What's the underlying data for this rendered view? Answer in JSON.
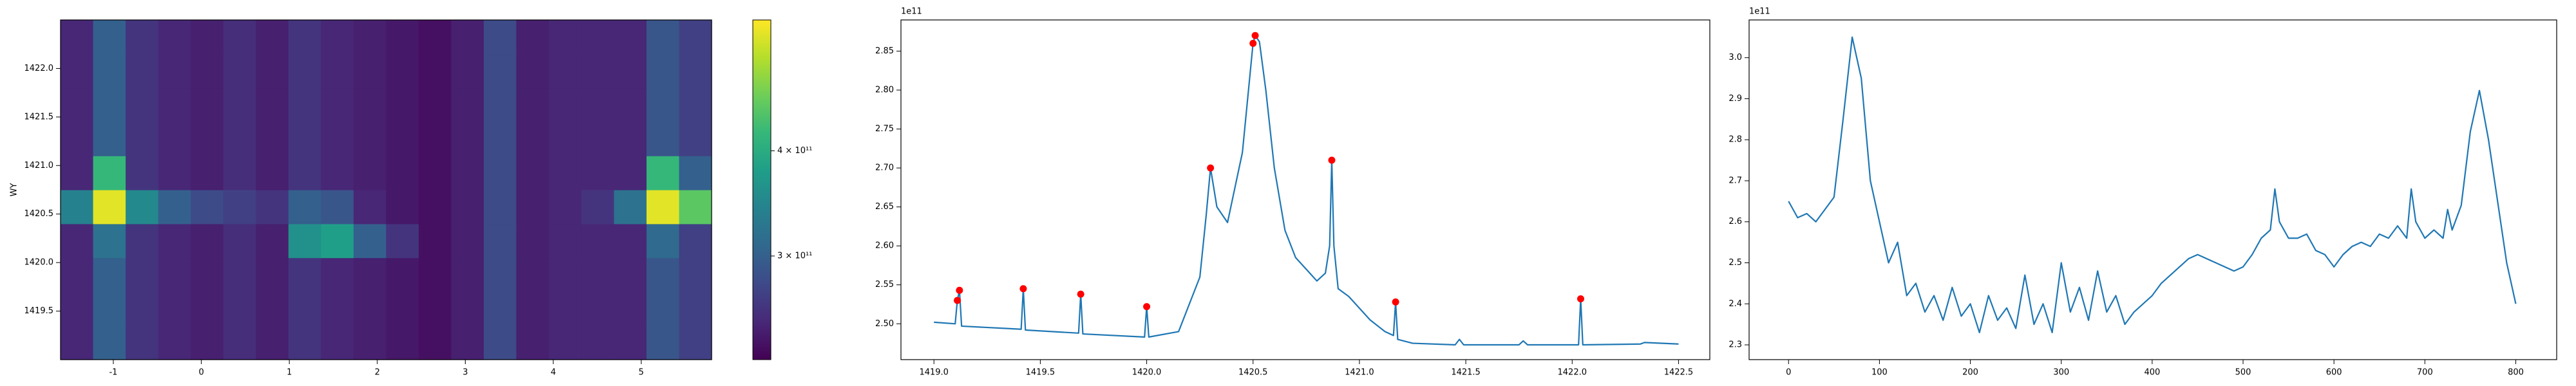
{
  "chart_data": [
    {
      "type": "heatmap",
      "ylabel": "WY",
      "origin": "lower",
      "xlim": [
        -1.6,
        5.8
      ],
      "ylim": [
        1419.0,
        1422.5
      ],
      "xticks": [
        -1,
        0,
        1,
        2,
        3,
        4,
        5
      ],
      "yticks": [
        1419.5,
        {
          "value": 1420,
          "label": "1420.0"
        },
        1420.5,
        {
          "value": 1421,
          "label": "1421.0"
        },
        1421.5,
        {
          "value": 1422,
          "label": "1422.0"
        }
      ],
      "colormap": [
        "#440154",
        "#482878",
        "#3e4989",
        "#31688e",
        "#26828e",
        "#1f9e89",
        "#35b779",
        "#6ece58",
        "#b5de2b",
        "#fde725"
      ],
      "zscale": "log",
      "colorbar": {
        "zlim": [
          226000000000.0,
          572000000000.0
        ],
        "ticks": [
          {
            "value": 300000000000.0,
            "label": "3 × 10¹¹"
          },
          {
            "value": 400000000000.0,
            "label": "4 × 10¹¹"
          }
        ]
      },
      "z": [
        [
          250000000000.0,
          300000000000.0,
          260000000000.0,
          250000000000.0,
          245000000000.0,
          255000000000.0,
          245000000000.0,
          260000000000.0,
          250000000000.0,
          245000000000.0,
          240000000000.0,
          235000000000.0,
          245000000000.0,
          280000000000.0,
          245000000000.0,
          250000000000.0,
          250000000000.0,
          250000000000.0,
          290000000000.0,
          270000000000.0
        ],
        [
          250000000000.0,
          300000000000.0,
          260000000000.0,
          250000000000.0,
          245000000000.0,
          255000000000.0,
          245000000000.0,
          260000000000.0,
          250000000000.0,
          245000000000.0,
          240000000000.0,
          235000000000.0,
          245000000000.0,
          280000000000.0,
          245000000000.0,
          250000000000.0,
          250000000000.0,
          250000000000.0,
          290000000000.0,
          270000000000.0
        ],
        [
          250000000000.0,
          300000000000.0,
          260000000000.0,
          250000000000.0,
          245000000000.0,
          255000000000.0,
          245000000000.0,
          260000000000.0,
          250000000000.0,
          245000000000.0,
          240000000000.0,
          235000000000.0,
          245000000000.0,
          280000000000.0,
          245000000000.0,
          250000000000.0,
          250000000000.0,
          250000000000.0,
          290000000000.0,
          270000000000.0
        ],
        [
          250000000000.0,
          320000000000.0,
          260000000000.0,
          250000000000.0,
          245000000000.0,
          255000000000.0,
          245000000000.0,
          360000000000.0,
          380000000000.0,
          300000000000.0,
          260000000000.0,
          235000000000.0,
          245000000000.0,
          280000000000.0,
          245000000000.0,
          250000000000.0,
          250000000000.0,
          250000000000.0,
          310000000000.0,
          270000000000.0
        ],
        [
          340000000000.0,
          550000000000.0,
          350000000000.0,
          300000000000.0,
          280000000000.0,
          270000000000.0,
          260000000000.0,
          300000000000.0,
          290000000000.0,
          250000000000.0,
          240000000000.0,
          235000000000.0,
          245000000000.0,
          280000000000.0,
          245000000000.0,
          250000000000.0,
          260000000000.0,
          320000000000.0,
          550000000000.0,
          450000000000.0
        ],
        [
          250000000000.0,
          420000000000.0,
          260000000000.0,
          250000000000.0,
          245000000000.0,
          255000000000.0,
          245000000000.0,
          260000000000.0,
          250000000000.0,
          245000000000.0,
          240000000000.0,
          235000000000.0,
          245000000000.0,
          280000000000.0,
          245000000000.0,
          250000000000.0,
          250000000000.0,
          250000000000.0,
          420000000000.0,
          300000000000.0
        ],
        [
          250000000000.0,
          300000000000.0,
          260000000000.0,
          250000000000.0,
          245000000000.0,
          255000000000.0,
          245000000000.0,
          260000000000.0,
          250000000000.0,
          245000000000.0,
          240000000000.0,
          235000000000.0,
          245000000000.0,
          280000000000.0,
          245000000000.0,
          250000000000.0,
          250000000000.0,
          250000000000.0,
          290000000000.0,
          270000000000.0
        ],
        [
          250000000000.0,
          300000000000.0,
          260000000000.0,
          250000000000.0,
          245000000000.0,
          255000000000.0,
          245000000000.0,
          260000000000.0,
          250000000000.0,
          245000000000.0,
          240000000000.0,
          235000000000.0,
          245000000000.0,
          280000000000.0,
          245000000000.0,
          250000000000.0,
          250000000000.0,
          250000000000.0,
          290000000000.0,
          270000000000.0
        ],
        [
          250000000000.0,
          300000000000.0,
          260000000000.0,
          250000000000.0,
          245000000000.0,
          255000000000.0,
          245000000000.0,
          260000000000.0,
          250000000000.0,
          245000000000.0,
          240000000000.0,
          235000000000.0,
          245000000000.0,
          280000000000.0,
          245000000000.0,
          250000000000.0,
          250000000000.0,
          250000000000.0,
          290000000000.0,
          270000000000.0
        ],
        [
          250000000000.0,
          300000000000.0,
          260000000000.0,
          250000000000.0,
          245000000000.0,
          255000000000.0,
          245000000000.0,
          260000000000.0,
          250000000000.0,
          245000000000.0,
          240000000000.0,
          235000000000.0,
          245000000000.0,
          280000000000.0,
          245000000000.0,
          250000000000.0,
          250000000000.0,
          250000000000.0,
          290000000000.0,
          270000000000.0
        ]
      ]
    },
    {
      "type": "line",
      "y_offset_label": "1e11",
      "xlim": [
        1418.845,
        1422.647
      ],
      "ylim": [
        2.454,
        2.89
      ],
      "xticks": [
        {
          "value": 1419,
          "label": "1419.0"
        },
        1419.5,
        {
          "value": 1420,
          "label": "1420.0"
        },
        1420.5,
        {
          "value": 1421,
          "label": "1421.0"
        },
        1421.5,
        {
          "value": 1422,
          "label": "1422.0"
        },
        1422.5
      ],
      "yticks": [
        {
          "value": 2.5,
          "label": "2.50"
        },
        2.55,
        {
          "value": 2.6,
          "label": "2.60"
        },
        2.65,
        {
          "value": 2.7,
          "label": "2.70"
        },
        2.75,
        {
          "value": 2.8,
          "label": "2.80"
        },
        2.85
      ],
      "series": [
        {
          "color": "#1f77b4",
          "mode": "line",
          "x": [
            1419.0,
            1419.1,
            1419.11,
            1419.12,
            1419.13,
            1419.41,
            1419.42,
            1419.43,
            1419.68,
            1419.69,
            1419.7,
            1419.99,
            1420.0,
            1420.01,
            1420.15,
            1420.25,
            1420.28,
            1420.3,
            1420.33,
            1420.38,
            1420.45,
            1420.5,
            1420.51,
            1420.53,
            1420.56,
            1420.6,
            1420.65,
            1420.7,
            1420.75,
            1420.8,
            1420.84,
            1420.86,
            1420.87,
            1420.88,
            1420.9,
            1420.95,
            1421.05,
            1421.12,
            1421.16,
            1421.17,
            1421.18,
            1421.25,
            1421.45,
            1421.47,
            1421.49,
            1421.75,
            1421.77,
            1421.79,
            1422.03,
            1422.04,
            1422.05,
            1422.32,
            1422.34,
            1422.5
          ],
          "values": [
            2.502,
            2.5,
            2.53,
            2.543,
            2.497,
            2.493,
            2.545,
            2.492,
            2.488,
            2.538,
            2.487,
            2.483,
            2.522,
            2.483,
            2.49,
            2.56,
            2.64,
            2.7,
            2.65,
            2.63,
            2.72,
            2.86,
            2.87,
            2.862,
            2.8,
            2.7,
            2.62,
            2.585,
            2.57,
            2.555,
            2.565,
            2.6,
            2.71,
            2.6,
            2.545,
            2.535,
            2.505,
            2.49,
            2.485,
            2.528,
            2.48,
            2.475,
            2.473,
            2.48,
            2.473,
            2.473,
            2.478,
            2.473,
            2.473,
            2.532,
            2.473,
            2.474,
            2.476,
            2.474
          ]
        },
        {
          "color": "red",
          "mode": "markers",
          "x": [
            1419.11,
            1419.12,
            1419.42,
            1419.69,
            1420.0,
            1420.3,
            1420.5,
            1420.51,
            1420.87,
            1421.17,
            1422.04
          ],
          "values": [
            2.53,
            2.543,
            2.545,
            2.538,
            2.522,
            2.7,
            2.86,
            2.87,
            2.71,
            2.528,
            2.532
          ]
        }
      ]
    },
    {
      "type": "line",
      "y_offset_label": "1e11",
      "xlim": [
        -43.4,
        845
      ],
      "ylim": [
        2.264,
        3.092
      ],
      "xticks": [
        0,
        100,
        200,
        300,
        400,
        500,
        600,
        700,
        800
      ],
      "yticks": [
        2.3,
        2.4,
        2.5,
        2.6,
        2.7,
        2.8,
        2.9,
        {
          "value": 3,
          "label": "3.0"
        }
      ],
      "series": [
        {
          "color": "#1f77b4",
          "mode": "line",
          "x": [
            0,
            10,
            20,
            30,
            40,
            50,
            60,
            70,
            80,
            90,
            100,
            110,
            120,
            130,
            140,
            150,
            160,
            170,
            180,
            190,
            200,
            210,
            220,
            230,
            240,
            250,
            260,
            270,
            280,
            290,
            300,
            310,
            320,
            330,
            340,
            350,
            360,
            370,
            380,
            390,
            400,
            410,
            420,
            430,
            440,
            450,
            460,
            470,
            480,
            490,
            500,
            510,
            520,
            530,
            535,
            540,
            550,
            560,
            570,
            580,
            590,
            600,
            610,
            620,
            630,
            640,
            650,
            660,
            670,
            680,
            685,
            690,
            700,
            710,
            720,
            725,
            730,
            740,
            750,
            760,
            770,
            780,
            790,
            800
          ],
          "values": [
            2.65,
            2.61,
            2.62,
            2.6,
            2.63,
            2.66,
            2.85,
            3.05,
            2.95,
            2.7,
            2.6,
            2.5,
            2.55,
            2.42,
            2.45,
            2.38,
            2.42,
            2.36,
            2.44,
            2.37,
            2.4,
            2.33,
            2.42,
            2.36,
            2.39,
            2.34,
            2.47,
            2.35,
            2.4,
            2.33,
            2.5,
            2.38,
            2.44,
            2.36,
            2.48,
            2.38,
            2.42,
            2.35,
            2.38,
            2.4,
            2.42,
            2.45,
            2.47,
            2.49,
            2.51,
            2.52,
            2.51,
            2.5,
            2.49,
            2.48,
            2.49,
            2.52,
            2.56,
            2.58,
            2.68,
            2.6,
            2.56,
            2.56,
            2.57,
            2.53,
            2.52,
            2.49,
            2.52,
            2.54,
            2.55,
            2.54,
            2.57,
            2.56,
            2.59,
            2.56,
            2.68,
            2.6,
            2.56,
            2.58,
            2.56,
            2.63,
            2.58,
            2.64,
            2.82,
            2.92,
            2.8,
            2.65,
            2.5,
            2.4
          ]
        }
      ]
    }
  ]
}
